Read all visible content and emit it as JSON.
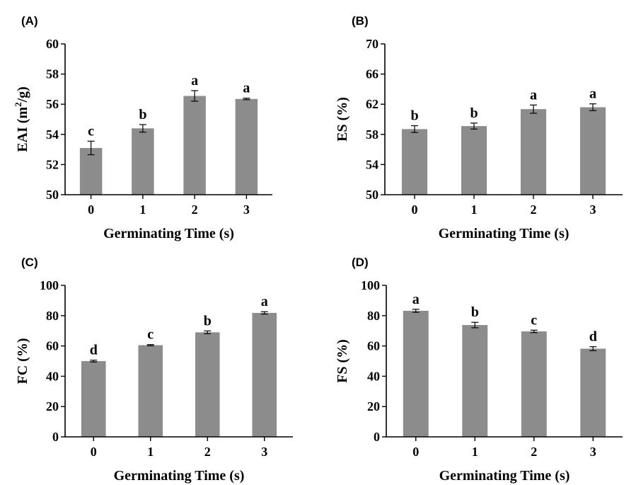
{
  "chart_data": [
    {
      "type": "bar",
      "panel_label": "(A)",
      "categories": [
        "0",
        "1",
        "2",
        "3"
      ],
      "values": [
        53.1,
        54.4,
        56.55,
        56.35
      ],
      "errors": [
        0.45,
        0.25,
        0.35,
        0.05
      ],
      "significance": [
        "c",
        "b",
        "a",
        "a"
      ],
      "ylabel_main": "EAI (m",
      "ylabel_sup": "2",
      "ylabel_end": "/g)",
      "xlabel": "Germinating Time (s)",
      "ylim": [
        50,
        60
      ],
      "yticks": [
        50,
        52,
        54,
        56,
        58,
        60
      ],
      "color": "#8c8c8c"
    },
    {
      "type": "bar",
      "panel_label": "(B)",
      "categories": [
        "0",
        "1",
        "2",
        "3"
      ],
      "values": [
        58.7,
        59.1,
        61.35,
        61.6
      ],
      "errors": [
        0.45,
        0.4,
        0.55,
        0.45
      ],
      "significance": [
        "b",
        "b",
        "a",
        "a"
      ],
      "ylabel_main": "ES (%)",
      "ylabel_sup": "",
      "ylabel_end": "",
      "xlabel": "Germinating Time (s)",
      "ylim": [
        50,
        70
      ],
      "yticks": [
        50,
        54,
        58,
        62,
        66,
        70
      ],
      "color": "#8c8c8c"
    },
    {
      "type": "bar",
      "panel_label": "(C)",
      "categories": [
        "0",
        "1",
        "2",
        "3"
      ],
      "values": [
        50,
        60.5,
        69,
        81.8
      ],
      "errors": [
        0.6,
        0.4,
        0.9,
        0.8
      ],
      "significance": [
        "d",
        "c",
        "b",
        "a"
      ],
      "ylabel_main": "FC (%)",
      "ylabel_sup": "",
      "ylabel_end": "",
      "xlabel": "Germinating Time (s)",
      "ylim": [
        0,
        100
      ],
      "yticks": [
        0,
        20,
        40,
        60,
        80,
        100
      ],
      "color": "#8c8c8c"
    },
    {
      "type": "bar",
      "panel_label": "(D)",
      "categories": [
        "0",
        "1",
        "2",
        "3"
      ],
      "values": [
        83.2,
        73.8,
        69.6,
        58.2
      ],
      "errors": [
        1.0,
        1.8,
        0.8,
        1.3
      ],
      "significance": [
        "a",
        "b",
        "c",
        "d"
      ],
      "ylabel_main": "FS (%)",
      "ylabel_sup": "",
      "ylabel_end": "",
      "xlabel": "Germinating Time (s)",
      "ylim": [
        0,
        100
      ],
      "yticks": [
        0,
        20,
        40,
        60,
        80,
        100
      ],
      "color": "#8c8c8c"
    }
  ]
}
